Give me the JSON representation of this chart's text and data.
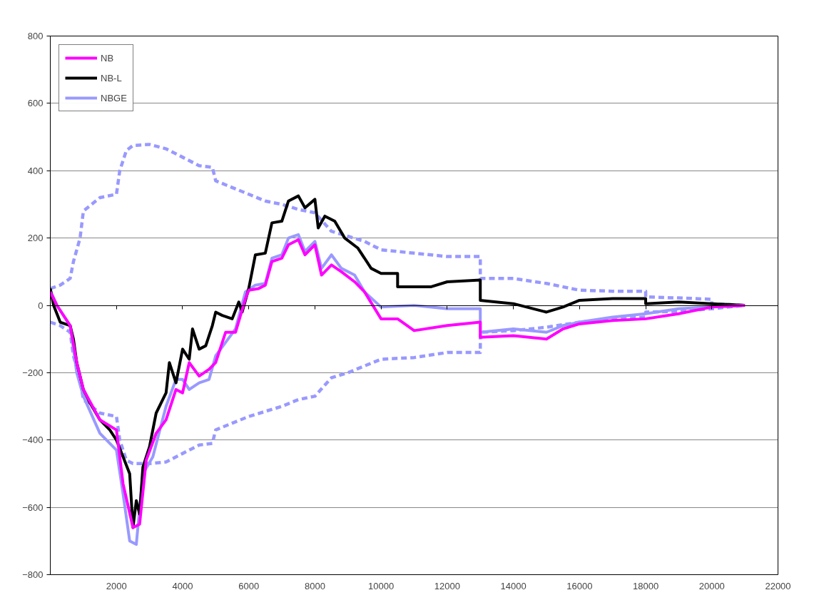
{
  "chart_data": {
    "type": "line",
    "xlim": [
      0,
      22000
    ],
    "ylim": [
      -800,
      800
    ],
    "xticks": [
      2000,
      4000,
      6000,
      8000,
      10000,
      12000,
      14000,
      16000,
      18000,
      20000,
      22000
    ],
    "yticks": [
      -800,
      -600,
      -400,
      -200,
      0,
      200,
      400,
      600,
      800
    ],
    "grid": "y",
    "legend": "top left",
    "line_style": "solid",
    "marker": "none",
    "series": [
      {
        "name": "NB",
        "color": "#ff00ff",
        "x": [
          0,
          200,
          600,
          800,
          1000,
          1500,
          2000,
          2200,
          2500,
          2700,
          2900,
          3200,
          3500,
          3800,
          4000,
          4200,
          4500,
          4800,
          5000,
          5300,
          5600,
          5900,
          6000,
          6300,
          6500,
          6700,
          7000,
          7200,
          7500,
          7700,
          8000,
          8200,
          8500,
          8800,
          9200,
          9500,
          10000,
          10500,
          11000,
          12000,
          13000,
          13000,
          14000,
          15000,
          15500,
          16000,
          17000,
          18000,
          19000,
          20000,
          21000
        ],
        "values": [
          40,
          0,
          -60,
          -170,
          -250,
          -340,
          -370,
          -530,
          -660,
          -650,
          -460,
          -380,
          -340,
          -250,
          -260,
          -170,
          -210,
          -190,
          -170,
          -80,
          -80,
          20,
          45,
          50,
          60,
          130,
          140,
          180,
          195,
          150,
          180,
          90,
          120,
          100,
          70,
          40,
          -40,
          -40,
          -75,
          -60,
          -50,
          -95,
          -90,
          -100,
          -70,
          -55,
          -45,
          -40,
          -25,
          -5,
          0
        ]
      },
      {
        "name": "NB-L",
        "color": "#000000",
        "x": [
          0,
          100,
          300,
          600,
          700,
          800,
          1000,
          1200,
          1500,
          1800,
          2000,
          2200,
          2400,
          2500,
          2600,
          2700,
          2800,
          3000,
          3200,
          3500,
          3600,
          3800,
          4000,
          4200,
          4300,
          4500,
          4700,
          4900,
          5000,
          5200,
          5500,
          5700,
          5800,
          6000,
          6200,
          6500,
          6700,
          7000,
          7200,
          7500,
          7700,
          8000,
          8100,
          8300,
          8600,
          8900,
          9300,
          9700,
          10000,
          10500,
          10500,
          11500,
          12000,
          13000,
          13000,
          14000,
          15000,
          15500,
          16000,
          17000,
          18000,
          18000,
          19000,
          20000,
          21000
        ],
        "values": [
          50,
          0,
          -50,
          -60,
          -100,
          -170,
          -250,
          -290,
          -340,
          -370,
          -400,
          -450,
          -500,
          -660,
          -580,
          -620,
          -480,
          -420,
          -320,
          -260,
          -170,
          -230,
          -130,
          -160,
          -70,
          -130,
          -120,
          -60,
          -20,
          -30,
          -40,
          10,
          -20,
          50,
          150,
          155,
          245,
          250,
          310,
          325,
          290,
          315,
          230,
          265,
          250,
          200,
          170,
          110,
          95,
          95,
          55,
          55,
          70,
          75,
          15,
          5,
          -20,
          -5,
          15,
          20,
          20,
          5,
          10,
          5,
          0
        ]
      },
      {
        "name": "NBGE",
        "color": "#9999ff",
        "x": [
          0,
          200,
          600,
          800,
          1000,
          1500,
          2000,
          2200,
          2400,
          2600,
          2800,
          3100,
          3500,
          3800,
          4000,
          4200,
          4500,
          4800,
          5000,
          5300,
          5600,
          5900,
          6200,
          6500,
          6700,
          7000,
          7200,
          7500,
          7700,
          8000,
          8200,
          8500,
          8800,
          9200,
          9500,
          10000,
          11000,
          12000,
          13000,
          13000,
          14000,
          15000,
          15500,
          16000,
          17000,
          18000,
          19000,
          20000,
          21000
        ],
        "values": [
          45,
          0,
          -60,
          -200,
          -270,
          -380,
          -430,
          -560,
          -700,
          -710,
          -500,
          -450,
          -300,
          -220,
          -220,
          -250,
          -230,
          -220,
          -150,
          -110,
          -70,
          40,
          60,
          65,
          140,
          150,
          200,
          210,
          160,
          190,
          110,
          150,
          110,
          90,
          40,
          -5,
          0,
          -10,
          -10,
          -80,
          -70,
          -80,
          -60,
          -50,
          -35,
          -25,
          -10,
          -5,
          0
        ]
      },
      {
        "color": "#9999ff",
        "line_style": "dashed",
        "x": [
          0,
          300,
          600,
          700,
          900,
          1000,
          1500,
          2000,
          2100,
          2300,
          2500,
          3000,
          3500,
          4000,
          4500,
          4900,
          5000,
          5500,
          6000,
          6500,
          7000,
          7500,
          8000,
          8500,
          9000,
          9500,
          10000,
          11000,
          12000,
          13000,
          13000,
          14000,
          15000,
          16000,
          17000,
          18000,
          18000,
          19000,
          20000,
          20000,
          21000
        ],
        "values": [
          50,
          60,
          80,
          130,
          200,
          280,
          320,
          330,
          400,
          460,
          475,
          478,
          465,
          440,
          415,
          410,
          370,
          350,
          330,
          310,
          300,
          285,
          275,
          220,
          205,
          190,
          165,
          155,
          145,
          145,
          80,
          80,
          65,
          45,
          42,
          42,
          25,
          22,
          18,
          5,
          0
        ]
      },
      {
        "color": "#9999ff",
        "line_style": "dashed",
        "x": [
          0,
          300,
          600,
          700,
          900,
          1000,
          1500,
          2000,
          2100,
          2300,
          2500,
          3000,
          3500,
          4000,
          4500,
          4900,
          5000,
          5500,
          6000,
          6500,
          7000,
          7500,
          8000,
          8500,
          9000,
          9500,
          10000,
          11000,
          12000,
          13000,
          13000,
          14000,
          15000,
          16000,
          17000,
          18000,
          18000,
          19000,
          20000,
          21000
        ],
        "values": [
          -50,
          -60,
          -80,
          -150,
          -220,
          -280,
          -320,
          -330,
          -400,
          -460,
          -470,
          -470,
          -465,
          -440,
          -415,
          -410,
          -370,
          -350,
          -330,
          -315,
          -300,
          -280,
          -270,
          -215,
          -200,
          -180,
          -160,
          -155,
          -140,
          -140,
          -80,
          -75,
          -65,
          -50,
          -40,
          -35,
          -20,
          -18,
          -10,
          0
        ]
      }
    ]
  }
}
